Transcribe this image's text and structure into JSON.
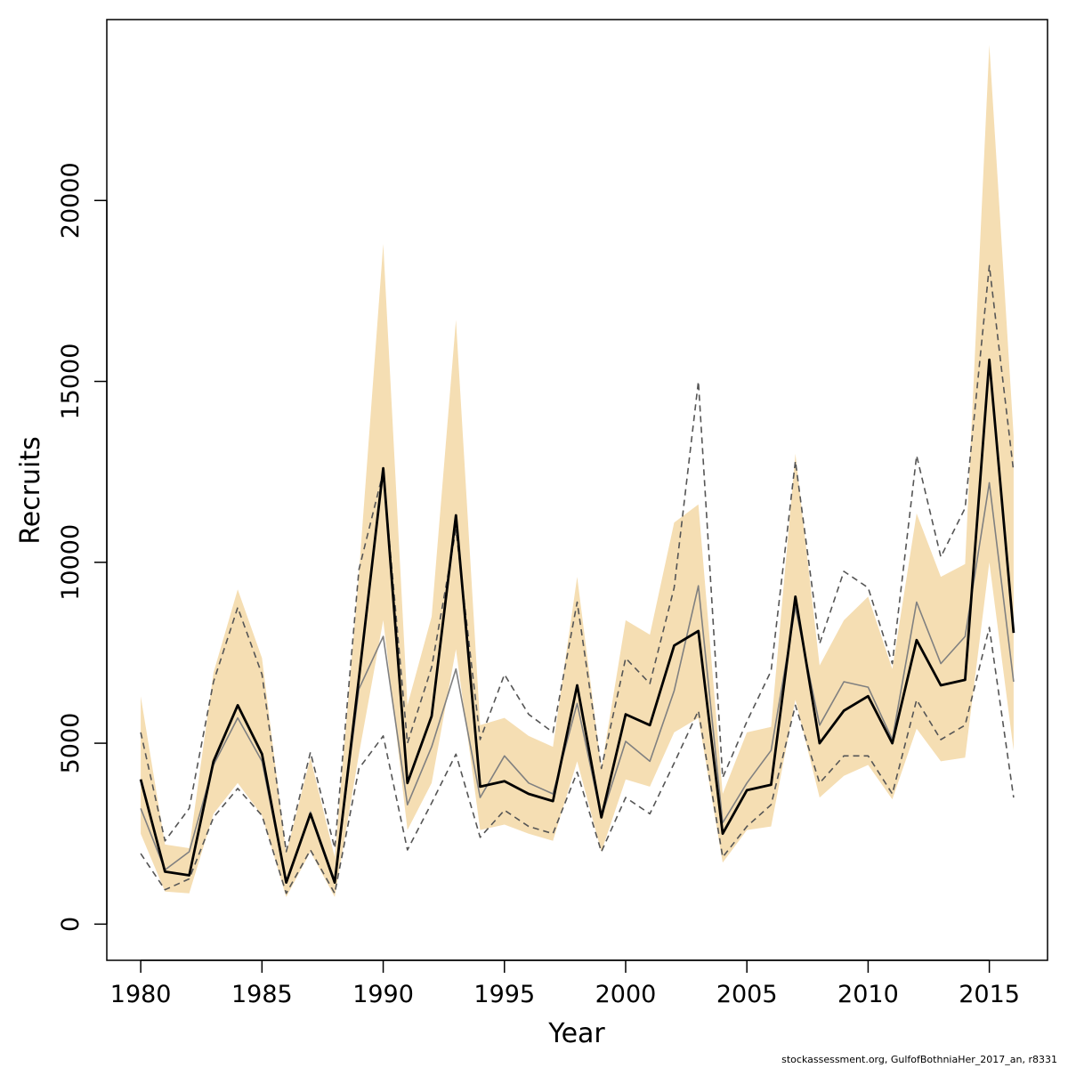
{
  "chart_data": {
    "type": "line",
    "xlabel": "Year",
    "ylabel": "Recruits",
    "xlim": [
      1978.6,
      2017.4
    ],
    "ylim": [
      -1000,
      25000
    ],
    "x_ticks": [
      1980,
      1985,
      1990,
      1995,
      2000,
      2005,
      2010,
      2015
    ],
    "y_ticks": [
      0,
      5000,
      10000,
      15000,
      20000
    ],
    "band_color": "#f5deb3",
    "x": [
      1980,
      1981,
      1982,
      1983,
      1984,
      1985,
      1986,
      1987,
      1988,
      1989,
      1990,
      1991,
      1992,
      1993,
      1994,
      1995,
      1996,
      1997,
      1998,
      1999,
      2000,
      2001,
      2002,
      2003,
      2004,
      2005,
      2006,
      2007,
      2008,
      2009,
      2010,
      2011,
      2012,
      2013,
      2014,
      2015,
      2016
    ],
    "series": [
      {
        "role": "estimate",
        "color": "#000000",
        "values": [
          4000,
          1450,
          1350,
          4500,
          6050,
          4700,
          1150,
          3050,
          1150,
          6800,
          12600,
          3900,
          5750,
          11300,
          3800,
          3950,
          3600,
          3400,
          6600,
          2950,
          5800,
          5500,
          7700,
          8100,
          2500,
          3700,
          3850,
          9050,
          5000,
          5900,
          6300,
          5000,
          7850,
          6600,
          6750,
          15600,
          8050
        ]
      },
      {
        "role": "band-upper",
        "values": [
          6300,
          2200,
          2100,
          6950,
          9250,
          7350,
          1950,
          4600,
          1850,
          9700,
          18800,
          6050,
          8500,
          16700,
          5500,
          5700,
          5200,
          4900,
          9600,
          4300,
          8400,
          8000,
          11100,
          11600,
          3600,
          5300,
          5450,
          13000,
          7150,
          8400,
          9050,
          7050,
          11350,
          9600,
          9950,
          24300,
          13500
        ]
      },
      {
        "role": "band-lower",
        "values": [
          2500,
          900,
          850,
          3050,
          3900,
          3000,
          750,
          2000,
          750,
          4700,
          8400,
          2600,
          3900,
          7600,
          2600,
          2750,
          2500,
          2300,
          4500,
          2000,
          4000,
          3800,
          5300,
          5700,
          1700,
          2600,
          2700,
          6200,
          3500,
          4100,
          4400,
          3450,
          5400,
          4500,
          4600,
          10000,
          4800
        ]
      },
      {
        "role": "comparison",
        "color": "#808080",
        "values": [
          3200,
          1500,
          2000,
          4400,
          5700,
          4500,
          1150,
          3100,
          1200,
          6500,
          7950,
          3300,
          4900,
          7050,
          3500,
          4650,
          3900,
          3600,
          6100,
          2950,
          5050,
          4500,
          6450,
          9350,
          2800,
          3900,
          4800,
          8750,
          5500,
          6700,
          6550,
          5100,
          8900,
          7200,
          7950,
          12200,
          6700
        ]
      },
      {
        "role": "comparison-upper",
        "color": "#555555",
        "values": [
          5300,
          2300,
          3200,
          6700,
          8750,
          6900,
          2000,
          4750,
          2100,
          9800,
          12500,
          5000,
          7100,
          10900,
          5100,
          6900,
          5800,
          5300,
          8900,
          4300,
          7350,
          6650,
          9300,
          15000,
          4050,
          5600,
          7000,
          12800,
          7750,
          9750,
          9300,
          7200,
          12950,
          10150,
          11500,
          18200,
          12500
        ]
      },
      {
        "role": "comparison-lower",
        "color": "#555555",
        "values": [
          1950,
          950,
          1250,
          2950,
          3750,
          3000,
          850,
          2050,
          850,
          4300,
          5200,
          2050,
          3350,
          4700,
          2400,
          3150,
          2700,
          2500,
          4200,
          2000,
          3500,
          3050,
          4450,
          5900,
          1850,
          2700,
          3300,
          6050,
          3900,
          4650,
          4650,
          3600,
          6200,
          5100,
          5500,
          8200,
          3500
        ]
      }
    ]
  },
  "footer": "stockassessment.org, GulfofBothniaHer_2017_an, r8331"
}
